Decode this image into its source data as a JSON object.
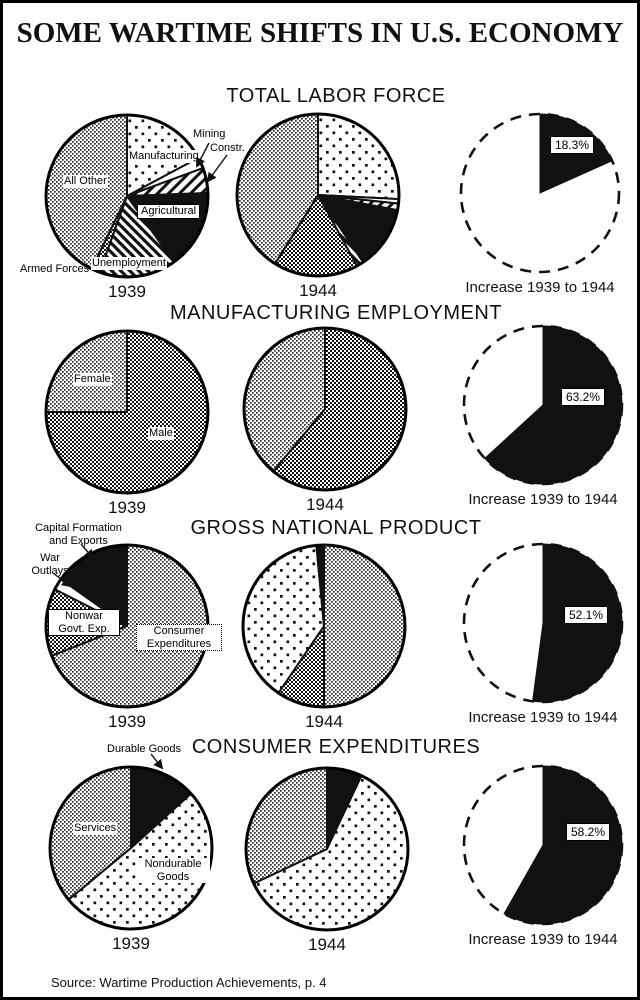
{
  "page": {
    "title": "SOME WARTIME SHIFTS IN U.S. ECONOMY",
    "source": "Source: Wartime Production Achievements, p. 4",
    "ink_color": "#111111",
    "paper_color": "#ffffff"
  },
  "chart_data": [
    {
      "type": "pie",
      "title": "TOTAL LABOR FORCE",
      "pies": [
        {
          "caption": "1939",
          "slices": [
            {
              "label": "Manufacturing",
              "pct": 17.2,
              "pattern": "polka"
            },
            {
              "label": "Mining",
              "pct": 2.2,
              "pattern": "white"
            },
            {
              "label": "Constr.",
              "pct": 5.0,
              "pattern": "hatch-up"
            },
            {
              "label": "Agricultural",
              "pct": 15.8,
              "pattern": "black"
            },
            {
              "label": "Unemployment",
              "pct": 15.3,
              "pattern": "stripe-down"
            },
            {
              "label": "Armed Forces",
              "pct": 1.7,
              "pattern": "gray-med"
            },
            {
              "label": "All Other",
              "pct": 42.8,
              "pattern": "gray-fine"
            }
          ]
        },
        {
          "caption": "1944",
          "slices": [
            {
              "label": "Manufacturing",
              "pct": 25.8,
              "pattern": "polka"
            },
            {
              "label": "Mining",
              "pct": 0.9,
              "pattern": "white"
            },
            {
              "label": "Constr.",
              "pct": 1.3,
              "pattern": "hatch-up"
            },
            {
              "label": "Agricultural",
              "pct": 12.6,
              "pattern": "black"
            },
            {
              "label": "Unemployment",
              "pct": 1.4,
              "pattern": "stripe-down"
            },
            {
              "label": "Armed Forces",
              "pct": 16.9,
              "pattern": "gray-med"
            },
            {
              "label": "All Other",
              "pct": 41.1,
              "pattern": "gray-fine"
            }
          ]
        }
      ],
      "increase": {
        "value": "18.3%",
        "pct": 18.3,
        "caption": "Increase 1939 to 1944"
      }
    },
    {
      "type": "pie",
      "title": "MANUFACTURING EMPLOYMENT",
      "pies": [
        {
          "caption": "1939",
          "slices": [
            {
              "label": "Male",
              "pct": 75.0,
              "pattern": "gray-med"
            },
            {
              "label": "Female",
              "pct": 25.0,
              "pattern": "gray-fine"
            }
          ]
        },
        {
          "caption": "1944",
          "slices": [
            {
              "label": "Male",
              "pct": 61.0,
              "pattern": "gray-med"
            },
            {
              "label": "Female",
              "pct": 39.0,
              "pattern": "gray-fine"
            }
          ]
        }
      ],
      "increase": {
        "value": "63.2%",
        "pct": 63.2,
        "caption": "Increase 1939 to 1944"
      }
    },
    {
      "type": "pie",
      "title": "GROSS NATIONAL PRODUCT",
      "pies": [
        {
          "caption": "1939",
          "slices": [
            {
              "label": "Consumer Expenditures",
              "pct": 69.0,
              "pattern": "gray-fine"
            },
            {
              "label": "Nonwar Govt. Exp.",
              "pct": 13.5,
              "pattern": "gray-med"
            },
            {
              "label": "War Outlays",
              "pct": 2.3,
              "pattern": "white"
            },
            {
              "label": "Capital Formation and Exports",
              "pct": 15.2,
              "pattern": "black"
            }
          ]
        },
        {
          "caption": "1944",
          "slices": [
            {
              "label": "Consumer Expenditures",
              "pct": 50.0,
              "pattern": "gray-fine"
            },
            {
              "label": "Nonwar Govt. Exp.",
              "pct": 9.5,
              "pattern": "gray-med"
            },
            {
              "label": "War Outlays",
              "pct": 39.0,
              "pattern": "polka"
            },
            {
              "label": "Capital Formation and Exports",
              "pct": 1.5,
              "pattern": "black"
            }
          ]
        }
      ],
      "increase": {
        "value": "52.1%",
        "pct": 52.1,
        "caption": "Increase 1939 to 1944"
      }
    },
    {
      "type": "pie",
      "title": "CONSUMER EXPENDITURES",
      "pies": [
        {
          "caption": "1939",
          "slices": [
            {
              "label": "Durable Goods",
              "pct": 13.3,
              "pattern": "black"
            },
            {
              "label": "Nondurable Goods",
              "pct": 50.7,
              "pattern": "polka"
            },
            {
              "label": "Services",
              "pct": 36.0,
              "pattern": "gray-fine"
            }
          ]
        },
        {
          "caption": "1944",
          "slices": [
            {
              "label": "Durable Goods",
              "pct": 7.0,
              "pattern": "black"
            },
            {
              "label": "Nondurable Goods",
              "pct": 61.0,
              "pattern": "polka"
            },
            {
              "label": "Services",
              "pct": 32.0,
              "pattern": "gray-fine"
            }
          ]
        }
      ],
      "increase": {
        "value": "58.2%",
        "pct": 58.2,
        "caption": "Increase 1939 to 1944"
      }
    }
  ]
}
